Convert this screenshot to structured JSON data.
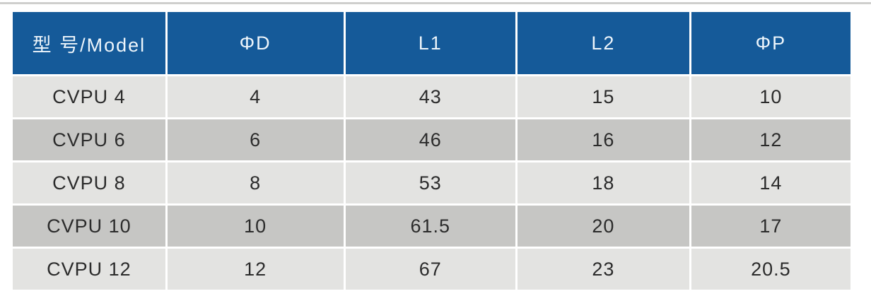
{
  "page": {
    "type": "product-specification-table"
  },
  "table": {
    "columns": [
      {
        "key": "model",
        "label": "型 号/Model"
      },
      {
        "key": "d",
        "label": "ΦD"
      },
      {
        "key": "l1",
        "label": "L1"
      },
      {
        "key": "l2",
        "label": "L2"
      },
      {
        "key": "p",
        "label": "ΦP"
      }
    ],
    "rows": [
      {
        "model": "CVPU 4",
        "d": "4",
        "l1": "43",
        "l2": "15",
        "p": "10"
      },
      {
        "model": "CVPU 6",
        "d": "6",
        "l1": "46",
        "l2": "16",
        "p": "12"
      },
      {
        "model": "CVPU 8",
        "d": "8",
        "l1": "53",
        "l2": "18",
        "p": "14"
      },
      {
        "model": "CVPU 10",
        "d": "10",
        "l1": "61.5",
        "l2": "20",
        "p": "17"
      },
      {
        "model": "CVPU 12",
        "d": "12",
        "l1": "67",
        "l2": "23",
        "p": "20.5"
      }
    ]
  },
  "colors": {
    "header_bg": "#155a99",
    "header_text": "#edf5fb",
    "row_light_bg": "#e3e3e1",
    "row_dark_bg": "#c6c6c4",
    "body_text": "#2b2b2b",
    "top_divider": "#cfcfcd",
    "page_bg": "#ffffff"
  }
}
